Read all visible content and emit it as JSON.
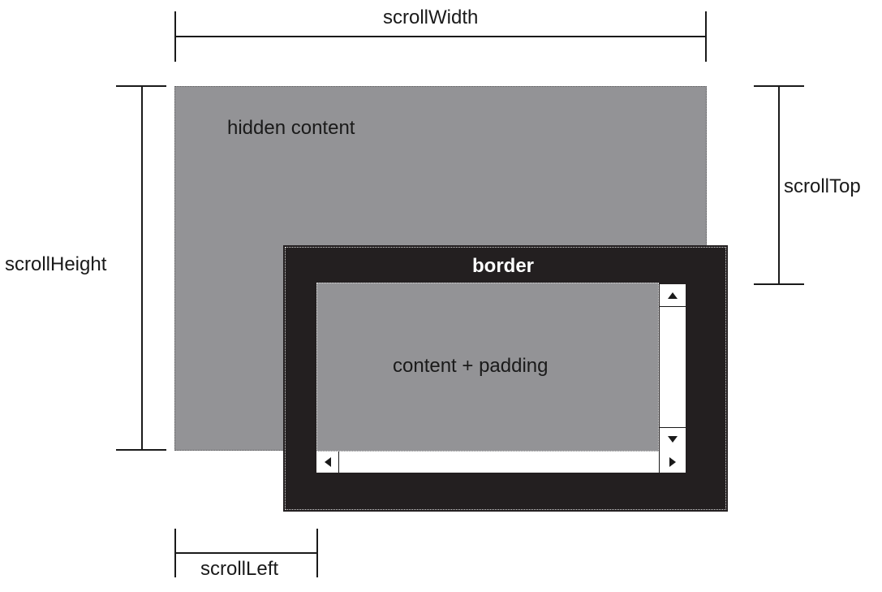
{
  "labels": {
    "scroll_width": "scrollWidth",
    "scroll_height": "scrollHeight",
    "scroll_top": "scrollTop",
    "scroll_left": "scrollLeft",
    "hidden_content": "hidden content",
    "border": "border",
    "content_padding": "content + padding"
  },
  "colors": {
    "content_fill": "#939396",
    "border_fill": "#231f20",
    "scrollbar_fill": "#ffffff"
  },
  "icons": {
    "scroll_up": "arrow-up-icon",
    "scroll_down": "arrow-down-icon",
    "scroll_left": "arrow-left-icon",
    "scroll_right": "arrow-right-icon"
  }
}
